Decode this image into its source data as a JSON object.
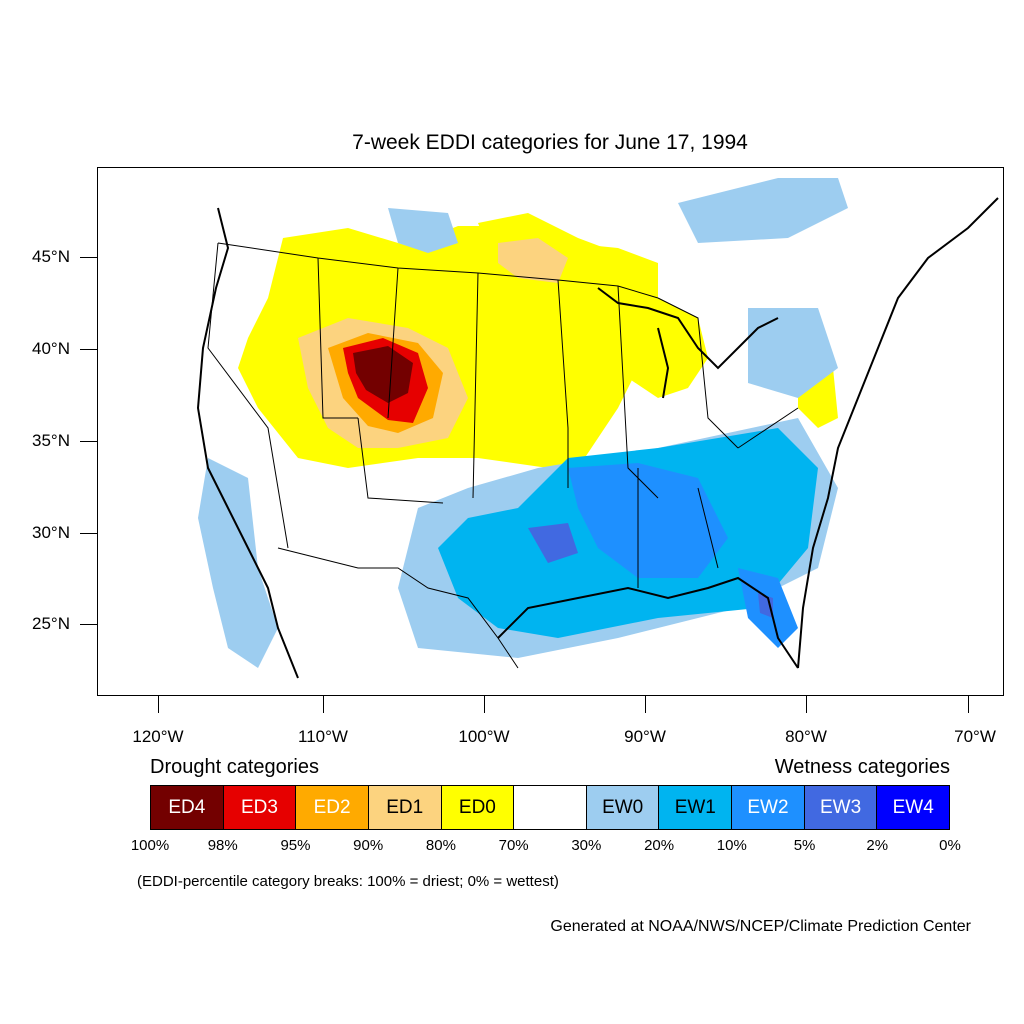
{
  "title": "7-week EDDI categories for June 17, 1994",
  "lat_labels": [
    "45°N",
    "40°N",
    "35°N",
    "30°N",
    "25°N"
  ],
  "lon_labels": [
    "120°W",
    "110°W",
    "100°W",
    "90°W",
    "80°W",
    "70°W"
  ],
  "drought_heading": "Drought categories",
  "wetness_heading": "Wetness categories",
  "legend": [
    {
      "label": "ED4",
      "color": "#730000",
      "text_color": "#ffffff"
    },
    {
      "label": "ED3",
      "color": "#e60000",
      "text_color": "#ffffff"
    },
    {
      "label": "ED2",
      "color": "#ffaa00",
      "text_color": "#ffffff"
    },
    {
      "label": "ED1",
      "color": "#fcd37f",
      "text_color": "#000000"
    },
    {
      "label": "ED0",
      "color": "#ffff00",
      "text_color": "#000000"
    },
    {
      "label": "",
      "color": "#ffffff",
      "text_color": "#000000"
    },
    {
      "label": "EW0",
      "color": "#9dcdf0",
      "text_color": "#000000"
    },
    {
      "label": "EW1",
      "color": "#00b4f0",
      "text_color": "#000000"
    },
    {
      "label": "EW2",
      "color": "#1e90ff",
      "text_color": "#ffffff"
    },
    {
      "label": "EW3",
      "color": "#4169e1",
      "text_color": "#ffffff"
    },
    {
      "label": "EW4",
      "color": "#0000ff",
      "text_color": "#ffffff"
    }
  ],
  "percent_breaks": [
    "100%",
    "98%",
    "95%",
    "90%",
    "80%",
    "70%",
    "30%",
    "20%",
    "10%",
    "5%",
    "2%",
    "0%"
  ],
  "note": "(EDDI-percentile category breaks: 100% = driest; 0% = wettest)",
  "credit": "Generated at NOAA/NWS/NCEP/Climate Prediction Center"
}
